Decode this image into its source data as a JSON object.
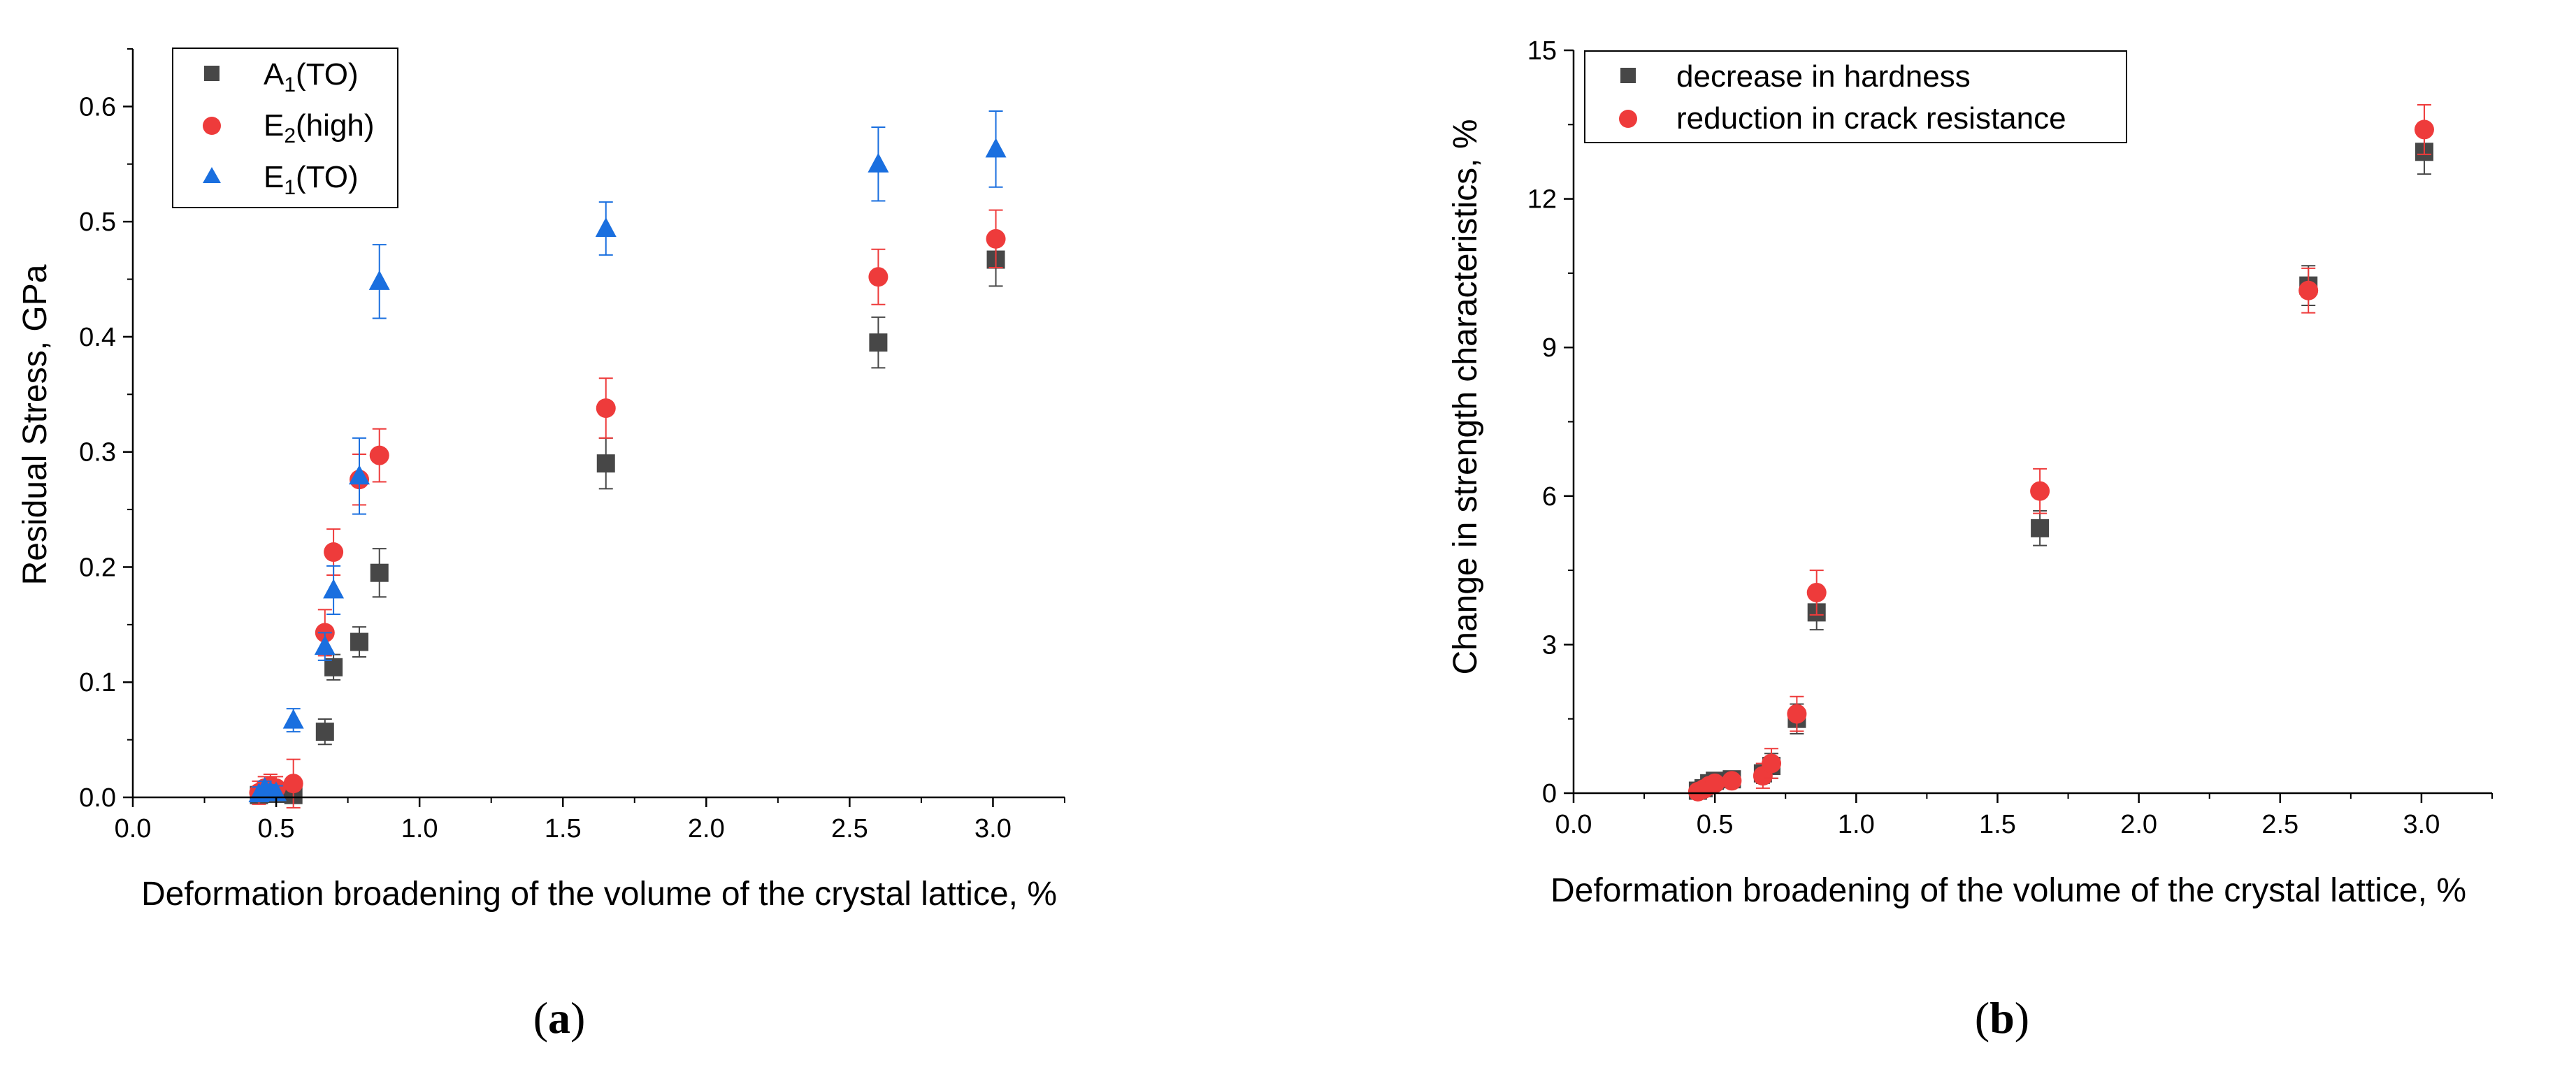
{
  "chart_data": [
    {
      "type": "scatter",
      "panel_label": "a",
      "xlabel": "Deformation broadening of the volume of the crystal lattice, %",
      "ylabel": "Residual Stress, GPa",
      "xlim": [
        0.0,
        3.25
      ],
      "ylim": [
        0.0,
        0.65
      ],
      "xticks": [
        "0.0",
        "0.5",
        "1.0",
        "1.5",
        "2.0",
        "2.5",
        "3.0"
      ],
      "yticks": [
        "0.0",
        "0.1",
        "0.2",
        "0.3",
        "0.4",
        "0.5",
        "0.6"
      ],
      "grid": false,
      "legend_position": "top-left",
      "series": [
        {
          "name": "A1(TO)",
          "label_base": "A",
          "label_sub": "1",
          "label_rest": "(TO)",
          "marker": "square",
          "color": "#474747",
          "x": [
            0.44,
            0.46,
            0.48,
            0.5,
            0.56,
            0.67,
            0.7,
            0.79,
            0.86,
            1.65,
            2.6,
            3.01
          ],
          "y": [
            0.002,
            0.004,
            0.006,
            0.003,
            0.002,
            0.057,
            0.113,
            0.135,
            0.195,
            0.29,
            0.395,
            0.467
          ],
          "err": [
            0.006,
            0.006,
            0.006,
            0.006,
            0.006,
            0.011,
            0.011,
            0.013,
            0.021,
            0.022,
            0.022,
            0.023
          ]
        },
        {
          "name": "E2(high)",
          "label_base": "E",
          "label_sub": "2",
          "label_rest": "(high)",
          "marker": "circle",
          "color": "#ee3b3b",
          "x": [
            0.44,
            0.46,
            0.48,
            0.5,
            0.56,
            0.67,
            0.7,
            0.79,
            0.86,
            1.65,
            2.6,
            3.01
          ],
          "y": [
            0.004,
            0.008,
            0.01,
            0.008,
            0.012,
            0.143,
            0.213,
            0.276,
            0.297,
            0.338,
            0.452,
            0.485
          ],
          "err": [
            0.01,
            0.01,
            0.01,
            0.01,
            0.021,
            0.02,
            0.02,
            0.022,
            0.023,
            0.026,
            0.024,
            0.025
          ]
        },
        {
          "name": "E1(TO)",
          "label_base": "E",
          "label_sub": "1",
          "label_rest": "(TO)",
          "marker": "triangle",
          "color": "#1a6fdf",
          "x": [
            0.44,
            0.46,
            0.48,
            0.5,
            0.56,
            0.67,
            0.7,
            0.79,
            0.86,
            1.65,
            2.6,
            3.01
          ],
          "y": [
            0.003,
            0.008,
            0.005,
            0.004,
            0.067,
            0.131,
            0.18,
            0.279,
            0.448,
            0.494,
            0.55,
            0.563
          ],
          "err": [
            0.006,
            0.006,
            0.006,
            0.006,
            0.01,
            0.012,
            0.021,
            0.033,
            0.032,
            0.023,
            0.032,
            0.033
          ]
        }
      ]
    },
    {
      "type": "scatter",
      "panel_label": "b",
      "xlabel": "Deformation broadening of the volume of the crystal lattice, %",
      "ylabel": "Change in strength characteristics, %",
      "xlim": [
        0.0,
        3.25
      ],
      "ylim": [
        0,
        15
      ],
      "xticks": [
        "0.0",
        "0.5",
        "1.0",
        "1.5",
        "2.0",
        "2.5",
        "3.0"
      ],
      "yticks": [
        "0",
        "3",
        "6",
        "9",
        "12",
        "15"
      ],
      "grid": false,
      "legend_position": "top-left",
      "series": [
        {
          "name": "decrease in hardness",
          "marker": "square",
          "color": "#474747",
          "x": [
            0.44,
            0.46,
            0.48,
            0.5,
            0.56,
            0.67,
            0.7,
            0.79,
            0.86,
            1.65,
            2.6,
            3.01
          ],
          "y": [
            0.05,
            0.1,
            0.2,
            0.25,
            0.28,
            0.4,
            0.55,
            1.5,
            3.65,
            5.35,
            10.25,
            12.95
          ],
          "err": [
            0.08,
            0.08,
            0.1,
            0.1,
            0.1,
            0.2,
            0.25,
            0.3,
            0.35,
            0.35,
            0.4,
            0.45
          ]
        },
        {
          "name": "reduction in crack resistance",
          "marker": "circle",
          "color": "#ee3b3b",
          "x": [
            0.44,
            0.46,
            0.48,
            0.5,
            0.56,
            0.67,
            0.7,
            0.79,
            0.86,
            1.65,
            2.6,
            3.01
          ],
          "y": [
            0.03,
            0.08,
            0.15,
            0.2,
            0.25,
            0.35,
            0.6,
            1.6,
            4.05,
            6.1,
            10.15,
            13.4
          ],
          "err": [
            0.08,
            0.08,
            0.1,
            0.1,
            0.1,
            0.25,
            0.3,
            0.35,
            0.45,
            0.45,
            0.45,
            0.5
          ]
        }
      ]
    }
  ]
}
